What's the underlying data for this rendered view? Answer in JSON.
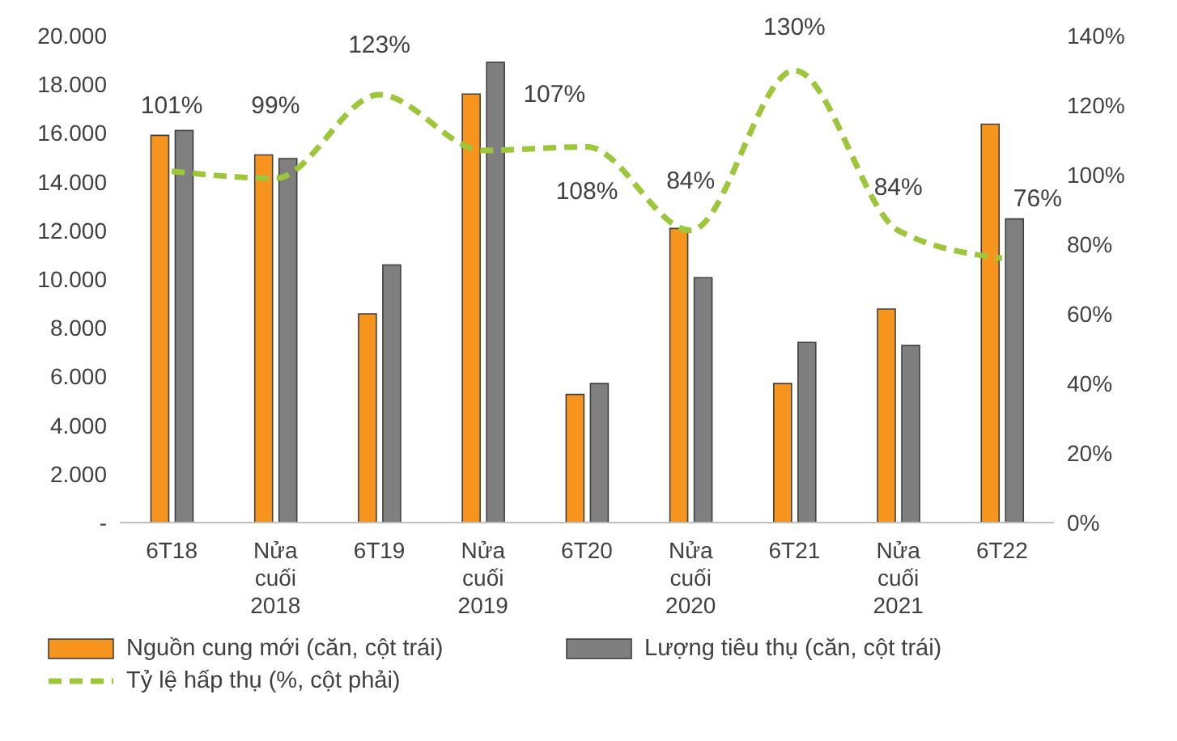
{
  "chart_data": {
    "type": "bar",
    "categories": [
      "6T18",
      "Nửa cuối 2018",
      "6T19",
      "Nửa cuối 2019",
      "6T20",
      "Nửa cuối 2020",
      "6T21",
      "Nửa cuối 2021",
      "6T22"
    ],
    "series": [
      {
        "name": "Nguồn cung mới (căn, cột trái)",
        "color": "#f7941d",
        "values": [
          15900,
          15100,
          8570,
          17600,
          5260,
          12080,
          5710,
          8770,
          16360
        ]
      },
      {
        "name": "Lượng tiêu thụ (căn, cột trái)",
        "color": "#7f7f7f",
        "values": [
          16100,
          14950,
          10580,
          18900,
          5710,
          10060,
          7400,
          7270,
          12470
        ]
      },
      {
        "name": "Tỷ lệ hấp thụ (%, cột phải)",
        "type": "line",
        "axis": "y2",
        "color": "#9dc63b",
        "line_style": "dashed",
        "marker": "none",
        "values": [
          101,
          99,
          123,
          107,
          108,
          84,
          130,
          84,
          76
        ],
        "value_labels": [
          "101%",
          "99%",
          "123%",
          "107%",
          "108%",
          "84%",
          "130%",
          "84%",
          "76%"
        ]
      }
    ],
    "ylim": [
      0,
      20000
    ],
    "yticks": [
      {
        "value": 0,
        "label": "-"
      },
      {
        "value": 2000,
        "label": "2.000"
      },
      {
        "value": 4000,
        "label": "4.000"
      },
      {
        "value": 6000,
        "label": "6.000"
      },
      {
        "value": 8000,
        "label": "8.000"
      },
      {
        "value": 10000,
        "label": "10.000"
      },
      {
        "value": 12000,
        "label": "12.000"
      },
      {
        "value": 14000,
        "label": "14.000"
      },
      {
        "value": 16000,
        "label": "16.000"
      },
      {
        "value": 18000,
        "label": "18.000"
      },
      {
        "value": 20000,
        "label": "20.000"
      }
    ],
    "y2lim": [
      0,
      140
    ],
    "y2ticks": [
      {
        "value": 0,
        "label": "0%"
      },
      {
        "value": 20,
        "label": "20%"
      },
      {
        "value": 40,
        "label": "40%"
      },
      {
        "value": 60,
        "label": "60%"
      },
      {
        "value": 80,
        "label": "80%"
      },
      {
        "value": 100,
        "label": "100%"
      },
      {
        "value": 120,
        "label": "120%"
      },
      {
        "value": 140,
        "label": "140%"
      }
    ],
    "legend": "bottom"
  }
}
